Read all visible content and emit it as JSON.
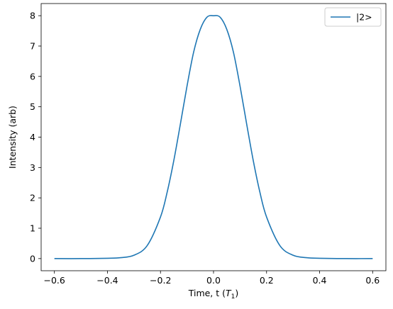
{
  "chart_data": {
    "type": "line",
    "xlabel": "Time, t (",
    "xlabel_sym": "T",
    "xlabel_sub": "1",
    "xlabel_end": ")",
    "ylabel": "Intensity (arb)",
    "xlim": [
      -0.65,
      0.65
    ],
    "ylim": [
      -0.4,
      8.4
    ],
    "xticks": [
      -0.6,
      -0.4,
      -0.2,
      0.0,
      0.2,
      0.4,
      0.6
    ],
    "xtick_labels": [
      "−0.6",
      "−0.4",
      "−0.2",
      "0.0",
      "0.2",
      "0.4",
      "0.6"
    ],
    "yticks": [
      0,
      1,
      2,
      3,
      4,
      5,
      6,
      7,
      8
    ],
    "ytick_labels": [
      "0",
      "1",
      "2",
      "3",
      "4",
      "5",
      "6",
      "7",
      "8"
    ],
    "grid": false,
    "legend_position": "top-right",
    "series": [
      {
        "name": "|2>",
        "color": "#1f77b4",
        "x": [
          -0.6,
          -0.5,
          -0.4,
          -0.35,
          -0.3,
          -0.25,
          -0.2,
          -0.175,
          -0.15,
          -0.125,
          -0.1,
          -0.075,
          -0.05,
          -0.025,
          0.0,
          0.025,
          0.05,
          0.075,
          0.1,
          0.125,
          0.15,
          0.175,
          0.2,
          0.25,
          0.3,
          0.35,
          0.4,
          0.5,
          0.6
        ],
        "y": [
          0.0,
          0.0,
          0.01,
          0.03,
          0.11,
          0.43,
          1.37,
          2.18,
          3.22,
          4.43,
          5.68,
          6.8,
          7.55,
          7.95,
          8.0,
          7.95,
          7.55,
          6.8,
          5.68,
          4.43,
          3.22,
          2.18,
          1.37,
          0.43,
          0.11,
          0.03,
          0.01,
          0.0,
          0.0
        ]
      }
    ]
  }
}
